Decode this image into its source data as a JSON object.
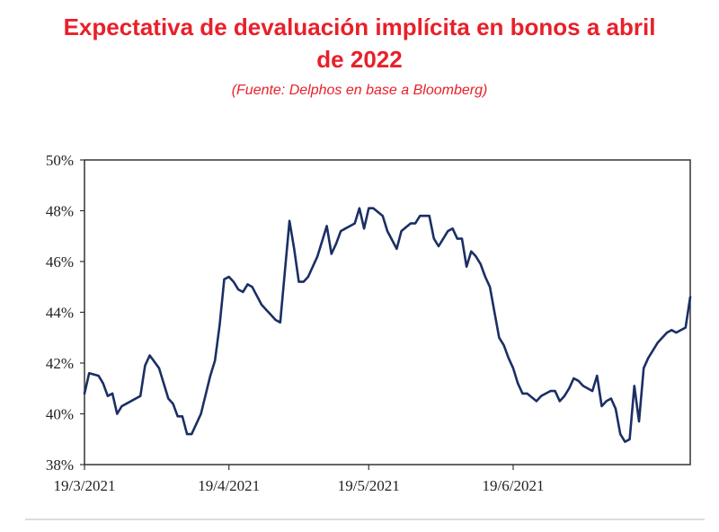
{
  "header": {
    "title_line1": "Expectativa de devaluación implícita en bonos a abril",
    "title_line2": "de 2022",
    "source": "(Fuente: Delphos en base a Bloomberg)"
  },
  "colors": {
    "title": "#e8202a",
    "line": "#1b2f64",
    "frame": "#333333"
  },
  "chart_data": {
    "type": "line",
    "title": "Expectativa de devaluación implícita en bonos a abril de 2022",
    "subtitle": "(Fuente: Delphos en base a Bloomberg)",
    "xlabel": "",
    "ylabel": "",
    "xlim": [
      "2021-03-19",
      "2021-07-27"
    ],
    "ylim": [
      38,
      50
    ],
    "y_ticks": [
      "38%",
      "40%",
      "42%",
      "44%",
      "46%",
      "48%",
      "50%"
    ],
    "y_tick_values": [
      38,
      40,
      42,
      44,
      46,
      48,
      50
    ],
    "x_ticks": [
      "19/3/2021",
      "19/4/2021",
      "19/5/2021",
      "19/6/2021"
    ],
    "x_tick_dates": [
      "2021-03-19",
      "2021-04-19",
      "2021-05-19",
      "2021-06-19"
    ],
    "grid": false,
    "legend": "none",
    "series": [
      {
        "x": [
          "2021-03-19",
          "2021-03-20",
          "2021-03-22",
          "2021-03-23",
          "2021-03-24",
          "2021-03-25",
          "2021-03-26",
          "2021-03-27",
          "2021-03-28",
          "2021-03-30",
          "2021-03-31",
          "2021-04-01",
          "2021-04-02",
          "2021-04-04",
          "2021-04-06",
          "2021-04-07",
          "2021-04-08",
          "2021-04-09",
          "2021-04-10",
          "2021-04-11",
          "2021-04-12",
          "2021-04-13",
          "2021-04-15",
          "2021-04-16",
          "2021-04-17",
          "2021-04-18",
          "2021-04-19",
          "2021-04-20",
          "2021-04-21",
          "2021-04-22",
          "2021-04-23",
          "2021-04-24",
          "2021-04-26",
          "2021-04-27",
          "2021-04-28",
          "2021-04-29",
          "2021-04-30",
          "2021-05-02",
          "2021-05-03",
          "2021-05-04",
          "2021-05-05",
          "2021-05-06",
          "2021-05-07",
          "2021-05-08",
          "2021-05-10",
          "2021-05-11",
          "2021-05-12",
          "2021-05-13",
          "2021-05-14",
          "2021-05-15",
          "2021-05-16",
          "2021-05-17",
          "2021-05-18",
          "2021-05-19",
          "2021-05-20",
          "2021-05-22",
          "2021-05-23",
          "2021-05-25",
          "2021-05-26",
          "2021-05-28",
          "2021-05-29",
          "2021-05-30",
          "2021-06-01",
          "2021-06-02",
          "2021-06-03",
          "2021-06-04",
          "2021-06-05",
          "2021-06-06",
          "2021-06-07",
          "2021-06-08",
          "2021-06-09",
          "2021-06-10",
          "2021-06-11",
          "2021-06-12",
          "2021-06-13",
          "2021-06-14",
          "2021-06-15",
          "2021-06-16",
          "2021-06-17",
          "2021-06-18",
          "2021-06-19",
          "2021-06-20",
          "2021-06-21",
          "2021-06-22",
          "2021-06-24",
          "2021-06-25",
          "2021-06-26",
          "2021-06-27",
          "2021-06-28",
          "2021-06-29",
          "2021-06-30",
          "2021-07-01",
          "2021-07-02",
          "2021-07-03",
          "2021-07-04",
          "2021-07-06",
          "2021-07-07",
          "2021-07-08",
          "2021-07-09",
          "2021-07-10",
          "2021-07-11",
          "2021-07-12",
          "2021-07-13",
          "2021-07-14",
          "2021-07-15",
          "2021-07-16",
          "2021-07-17",
          "2021-07-18",
          "2021-07-19",
          "2021-07-20",
          "2021-07-21",
          "2021-07-22",
          "2021-07-23",
          "2021-07-24",
          "2021-07-26",
          "2021-07-27"
        ],
        "y": [
          40.8,
          41.6,
          41.5,
          41.2,
          40.7,
          40.8,
          40.0,
          40.3,
          40.4,
          40.6,
          40.7,
          41.9,
          42.3,
          41.8,
          40.6,
          40.4,
          39.9,
          39.9,
          39.2,
          39.2,
          39.6,
          40.0,
          41.5,
          42.1,
          43.5,
          45.3,
          45.4,
          45.2,
          44.9,
          44.8,
          45.1,
          45.0,
          44.3,
          44.1,
          43.9,
          43.7,
          43.6,
          47.6,
          46.5,
          45.2,
          45.2,
          45.4,
          45.8,
          46.2,
          47.4,
          46.3,
          46.7,
          47.2,
          47.3,
          47.4,
          47.5,
          48.1,
          47.3,
          48.1,
          48.1,
          47.8,
          47.2,
          46.5,
          47.2,
          47.5,
          47.5,
          47.8,
          47.8,
          46.9,
          46.6,
          46.9,
          47.2,
          47.3,
          46.9,
          46.9,
          45.8,
          46.4,
          46.2,
          45.9,
          45.4,
          45.0,
          44.0,
          43.0,
          42.7,
          42.2,
          41.8,
          41.2,
          40.8,
          40.8,
          40.5,
          40.7,
          40.8,
          40.9,
          40.9,
          40.5,
          40.7,
          41.0,
          41.4,
          41.3,
          41.1,
          40.9,
          41.5,
          40.3,
          40.5,
          40.6,
          40.2,
          39.2,
          38.9,
          39.0,
          41.1,
          39.7,
          41.8,
          42.2,
          42.5,
          42.8,
          43.0,
          43.2,
          43.3,
          43.2,
          43.4,
          44.6
        ]
      }
    ]
  }
}
